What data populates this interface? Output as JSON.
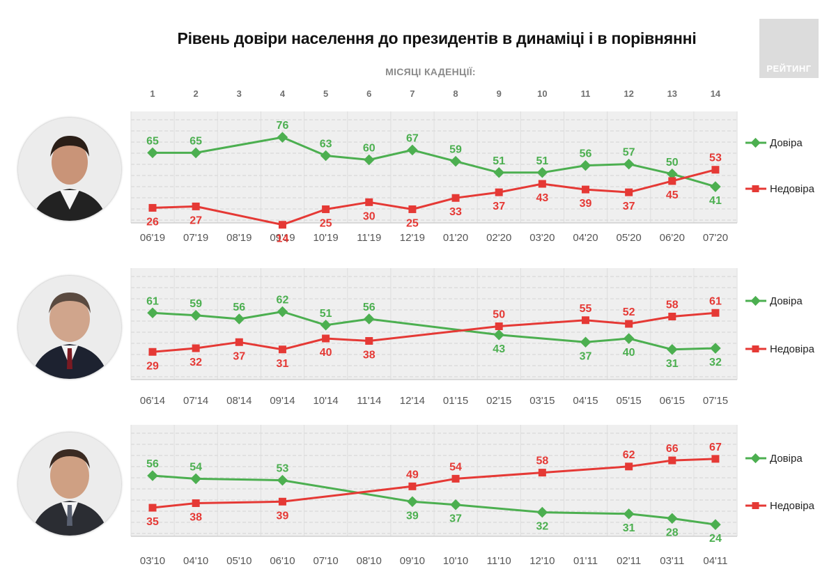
{
  "title": "Рівень довіри населення до президентів в динаміці і в порівнянні",
  "months_label": "МІСЯЦІ КАДЕНЦІЇ:",
  "months": [
    "1",
    "2",
    "3",
    "4",
    "5",
    "6",
    "7",
    "8",
    "9",
    "10",
    "11",
    "12",
    "13",
    "14"
  ],
  "logo_text": "РЕЙТИНГ",
  "colors": {
    "trust": "#4caf50",
    "distrust": "#e53935"
  },
  "chart_data": [
    {
      "type": "line",
      "categories": [
        "06'19",
        "07'19",
        "08'19",
        "09'19",
        "10'19",
        "11'19",
        "12'19",
        "01'20",
        "02'20",
        "03'20",
        "04'20",
        "05'20",
        "06'20",
        "07'20"
      ],
      "series": [
        {
          "name": "Довіра",
          "values": [
            65,
            65,
            null,
            76,
            63,
            60,
            67,
            59,
            51,
            51,
            56,
            57,
            50,
            41
          ]
        },
        {
          "name": "Недовіра",
          "values": [
            26,
            27,
            null,
            14,
            25,
            30,
            25,
            33,
            37,
            43,
            39,
            37,
            45,
            53
          ]
        }
      ]
    },
    {
      "type": "line",
      "categories": [
        "06'14",
        "07'14",
        "08'14",
        "09'14",
        "10'14",
        "11'14",
        "12'14",
        "01'15",
        "02'15",
        "03'15",
        "04'15",
        "05'15",
        "06'15",
        "07'15"
      ],
      "series": [
        {
          "name": "Довіра",
          "values": [
            61,
            59,
            56,
            62,
            51,
            56,
            null,
            null,
            43,
            null,
            37,
            40,
            31,
            32
          ]
        },
        {
          "name": "Недовіра",
          "values": [
            29,
            32,
            37,
            31,
            40,
            38,
            null,
            null,
            50,
            null,
            55,
            52,
            58,
            61
          ]
        }
      ]
    },
    {
      "type": "line",
      "categories": [
        "03'10",
        "04'10",
        "05'10",
        "06'10",
        "07'10",
        "08'10",
        "09'10",
        "10'10",
        "11'10",
        "12'10",
        "01'11",
        "02'11",
        "03'11",
        "04'11"
      ],
      "series": [
        {
          "name": "Довіра",
          "values": [
            56,
            54,
            null,
            53,
            null,
            null,
            39,
            37,
            null,
            32,
            null,
            31,
            28,
            24
          ]
        },
        {
          "name": "Недовіра",
          "values": [
            35,
            38,
            null,
            39,
            null,
            null,
            49,
            54,
            null,
            58,
            null,
            62,
            66,
            67
          ]
        }
      ]
    }
  ]
}
